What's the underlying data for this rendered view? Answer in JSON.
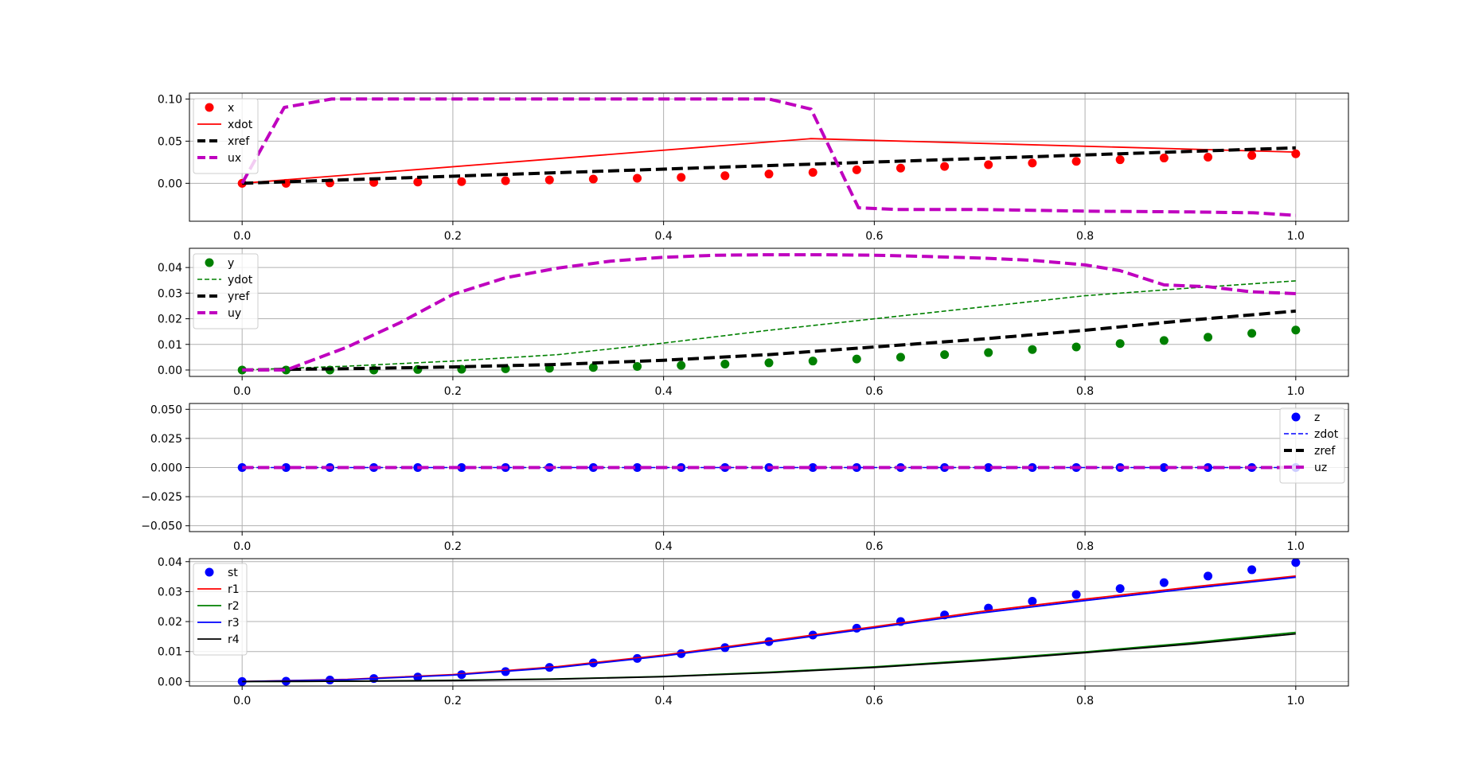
{
  "chart_data": [
    {
      "type": "line",
      "title": "",
      "xlabel": "",
      "ylabel": "",
      "xlim": [
        -0.05,
        1.05
      ],
      "ylim": [
        -0.045,
        0.107
      ],
      "x_ticks": [
        0,
        0.2,
        0.4,
        0.6,
        0.8,
        1
      ],
      "x_tick_labels": [
        "0.0",
        "0.2",
        "0.4",
        "0.6",
        "0.8",
        "1.0"
      ],
      "y_ticks": [
        0,
        0.05,
        0.1
      ],
      "y_tick_labels": [
        "0.00",
        "0.05",
        "0.10"
      ],
      "grid": true,
      "legend": "top-left",
      "series": [
        {
          "name": "x",
          "color": "#ff0000",
          "style": "markers",
          "x": [
            0,
            0.0417,
            0.0833,
            0.125,
            0.1667,
            0.2083,
            0.25,
            0.2917,
            0.3333,
            0.375,
            0.4167,
            0.4583,
            0.5,
            0.5417,
            0.5833,
            0.625,
            0.6667,
            0.7083,
            0.75,
            0.7917,
            0.8333,
            0.875,
            0.9167,
            0.9583,
            1
          ],
          "y": [
            0,
            0,
            0.0005,
            0.001,
            0.0015,
            0.002,
            0.003,
            0.004,
            0.005,
            0.006,
            0.007,
            0.009,
            0.011,
            0.013,
            0.016,
            0.018,
            0.02,
            0.022,
            0.024,
            0.026,
            0.028,
            0.03,
            0.031,
            0.033,
            0.035
          ]
        },
        {
          "name": "xdot",
          "color": "#ff0000",
          "style": "solid",
          "x": [
            0,
            0.54,
            1
          ],
          "y": [
            0,
            0.053,
            0.037
          ]
        },
        {
          "name": "xref",
          "color": "#000000",
          "style": "dashed",
          "x": [
            0,
            1
          ],
          "y": [
            0,
            0.042
          ]
        },
        {
          "name": "ux",
          "color": "#bf00bf",
          "style": "dashed",
          "x": [
            0,
            0.04,
            0.085,
            0.5,
            0.54,
            0.585,
            0.62,
            0.7,
            0.8,
            0.9,
            0.96,
            1
          ],
          "y": [
            0,
            0.09,
            0.1,
            0.1,
            0.088,
            -0.029,
            -0.031,
            -0.031,
            -0.033,
            -0.034,
            -0.035,
            -0.038
          ]
        }
      ]
    },
    {
      "type": "line",
      "title": "",
      "xlabel": "",
      "ylabel": "",
      "xlim": [
        -0.05,
        1.05
      ],
      "ylim": [
        -0.0025,
        0.0475
      ],
      "x_ticks": [
        0,
        0.2,
        0.4,
        0.6,
        0.8,
        1
      ],
      "x_tick_labels": [
        "0.0",
        "0.2",
        "0.4",
        "0.6",
        "0.8",
        "1.0"
      ],
      "y_ticks": [
        0,
        0.01,
        0.02,
        0.03,
        0.04
      ],
      "y_tick_labels": [
        "0.00",
        "0.01",
        "0.02",
        "0.03",
        "0.04"
      ],
      "grid": true,
      "legend": "top-left",
      "series": [
        {
          "name": "y",
          "color": "#008000",
          "style": "markers",
          "x": [
            0,
            0.0417,
            0.0833,
            0.125,
            0.1667,
            0.2083,
            0.25,
            0.2917,
            0.3333,
            0.375,
            0.4167,
            0.4583,
            0.5,
            0.5417,
            0.5833,
            0.625,
            0.6667,
            0.7083,
            0.75,
            0.7917,
            0.8333,
            0.875,
            0.9167,
            0.9583,
            1
          ],
          "y": [
            0,
            0,
            0,
            0,
            0.0002,
            0.0003,
            0.0005,
            0.0007,
            0.001,
            0.0014,
            0.0018,
            0.0023,
            0.0028,
            0.0035,
            0.0043,
            0.005,
            0.006,
            0.0068,
            0.008,
            0.009,
            0.0103,
            0.0115,
            0.0128,
            0.0143,
            0.0156
          ]
        },
        {
          "name": "ydot",
          "color": "#008000",
          "style": "dashed-thin",
          "x": [
            0,
            0.1,
            0.2,
            0.3,
            0.4,
            0.5,
            0.6,
            0.7,
            0.8,
            0.9,
            1
          ],
          "y": [
            0,
            0.0015,
            0.0035,
            0.006,
            0.0105,
            0.0155,
            0.02,
            0.0245,
            0.029,
            0.032,
            0.0348
          ]
        },
        {
          "name": "yref",
          "color": "#000000",
          "style": "dashed",
          "x": [
            0,
            0.1,
            0.2,
            0.3,
            0.4,
            0.5,
            0.6,
            0.7,
            0.8,
            0.9,
            1
          ],
          "y": [
            0,
            0.0005,
            0.0012,
            0.0022,
            0.0038,
            0.006,
            0.009,
            0.012,
            0.0155,
            0.0195,
            0.023
          ]
        },
        {
          "name": "uy",
          "color": "#bf00bf",
          "style": "dashed",
          "x": [
            0,
            0.042,
            0.1,
            0.15,
            0.2,
            0.25,
            0.3,
            0.35,
            0.4,
            0.45,
            0.5,
            0.55,
            0.6,
            0.65,
            0.7,
            0.75,
            0.8,
            0.833,
            0.875,
            0.917,
            0.958,
            1
          ],
          "y": [
            0,
            0,
            0.009,
            0.0185,
            0.0295,
            0.036,
            0.0398,
            0.0425,
            0.044,
            0.0448,
            0.045,
            0.045,
            0.0448,
            0.0443,
            0.0437,
            0.0428,
            0.041,
            0.0388,
            0.0332,
            0.0325,
            0.0305,
            0.0298
          ]
        }
      ]
    },
    {
      "type": "line",
      "title": "",
      "xlabel": "",
      "ylabel": "",
      "xlim": [
        -0.05,
        1.05
      ],
      "ylim": [
        -0.055,
        0.055
      ],
      "x_ticks": [
        0,
        0.2,
        0.4,
        0.6,
        0.8,
        1
      ],
      "x_tick_labels": [
        "0.0",
        "0.2",
        "0.4",
        "0.6",
        "0.8",
        "1.0"
      ],
      "y_ticks": [
        -0.05,
        -0.025,
        0,
        0.025,
        0.05
      ],
      "y_tick_labels": [
        "−0.050",
        "−0.025",
        "0.000",
        "0.025",
        "0.050"
      ],
      "grid": true,
      "legend": "top-right",
      "series": [
        {
          "name": "z",
          "color": "#0000ff",
          "style": "markers",
          "x": [
            0,
            0.0417,
            0.0833,
            0.125,
            0.1667,
            0.2083,
            0.25,
            0.2917,
            0.3333,
            0.375,
            0.4167,
            0.4583,
            0.5,
            0.5417,
            0.5833,
            0.625,
            0.6667,
            0.7083,
            0.75,
            0.7917,
            0.8333,
            0.875,
            0.9167,
            0.9583,
            1
          ],
          "y": [
            0,
            0,
            0,
            0,
            0,
            0,
            0,
            0,
            0,
            0,
            0,
            0,
            0,
            0,
            0,
            0,
            0,
            0,
            0,
            0,
            0,
            0,
            0,
            0,
            0
          ]
        },
        {
          "name": "zdot",
          "color": "#0000ff",
          "style": "dashed-thin",
          "x": [
            0,
            1
          ],
          "y": [
            0,
            0
          ]
        },
        {
          "name": "zref",
          "color": "#000000",
          "style": "dashed",
          "x": [
            0,
            1
          ],
          "y": [
            0,
            0
          ]
        },
        {
          "name": "uz",
          "color": "#bf00bf",
          "style": "dashed",
          "x": [
            0,
            1
          ],
          "y": [
            0,
            0
          ]
        }
      ]
    },
    {
      "type": "line",
      "title": "",
      "xlabel": "",
      "ylabel": "",
      "xlim": [
        -0.05,
        1.05
      ],
      "ylim": [
        -0.0015,
        0.041
      ],
      "x_ticks": [
        0,
        0.2,
        0.4,
        0.6,
        0.8,
        1
      ],
      "x_tick_labels": [
        "0.0",
        "0.2",
        "0.4",
        "0.6",
        "0.8",
        "1.0"
      ],
      "y_ticks": [
        0,
        0.01,
        0.02,
        0.03,
        0.04
      ],
      "y_tick_labels": [
        "0.00",
        "0.01",
        "0.02",
        "0.03",
        "0.04"
      ],
      "grid": true,
      "legend": "top-left",
      "series": [
        {
          "name": "st",
          "color": "#0000ff",
          "style": "markers",
          "x": [
            0,
            0.0417,
            0.0833,
            0.125,
            0.1667,
            0.2083,
            0.25,
            0.2917,
            0.3333,
            0.375,
            0.4167,
            0.4583,
            0.5,
            0.5417,
            0.5833,
            0.625,
            0.6667,
            0.7083,
            0.75,
            0.7917,
            0.8333,
            0.875,
            0.9167,
            0.9583,
            1
          ],
          "y": [
            0,
            0.0001,
            0.0005,
            0.001,
            0.0015,
            0.0023,
            0.0033,
            0.0047,
            0.0062,
            0.0077,
            0.0093,
            0.0113,
            0.0133,
            0.0155,
            0.0178,
            0.02,
            0.0222,
            0.0245,
            0.0268,
            0.029,
            0.031,
            0.033,
            0.0352,
            0.0373,
            0.0397
          ]
        },
        {
          "name": "r1",
          "color": "#ff0000",
          "style": "solid",
          "x": [
            0,
            0.1,
            0.2,
            0.3,
            0.4,
            0.5,
            0.6,
            0.7,
            0.8,
            0.9,
            1
          ],
          "y": [
            0,
            0.0007,
            0.0023,
            0.005,
            0.0088,
            0.0135,
            0.0183,
            0.0233,
            0.0275,
            0.0315,
            0.0352
          ]
        },
        {
          "name": "r2",
          "color": "#008000",
          "style": "solid",
          "x": [
            0,
            0.1,
            0.2,
            0.3,
            0.4,
            0.5,
            0.6,
            0.7,
            0.8,
            0.9,
            1
          ],
          "y": [
            0,
            0.0001,
            0.0004,
            0.0009,
            0.0017,
            0.0031,
            0.0049,
            0.0072,
            0.0099,
            0.0129,
            0.0164
          ]
        },
        {
          "name": "r3",
          "color": "#0000ff",
          "style": "solid",
          "x": [
            0,
            0.1,
            0.2,
            0.3,
            0.4,
            0.5,
            0.6,
            0.7,
            0.8,
            0.9,
            1
          ],
          "y": [
            0,
            0.0006,
            0.0021,
            0.0047,
            0.0085,
            0.0131,
            0.0179,
            0.0228,
            0.027,
            0.031,
            0.0348
          ]
        },
        {
          "name": "r4",
          "color": "#000000",
          "style": "solid",
          "x": [
            0,
            0.1,
            0.2,
            0.3,
            0.4,
            0.5,
            0.6,
            0.7,
            0.8,
            0.9,
            1
          ],
          "y": [
            0,
            0.0001,
            0.0003,
            0.0008,
            0.0016,
            0.0029,
            0.0047,
            0.0069,
            0.0096,
            0.0125,
            0.0159
          ]
        }
      ]
    }
  ]
}
